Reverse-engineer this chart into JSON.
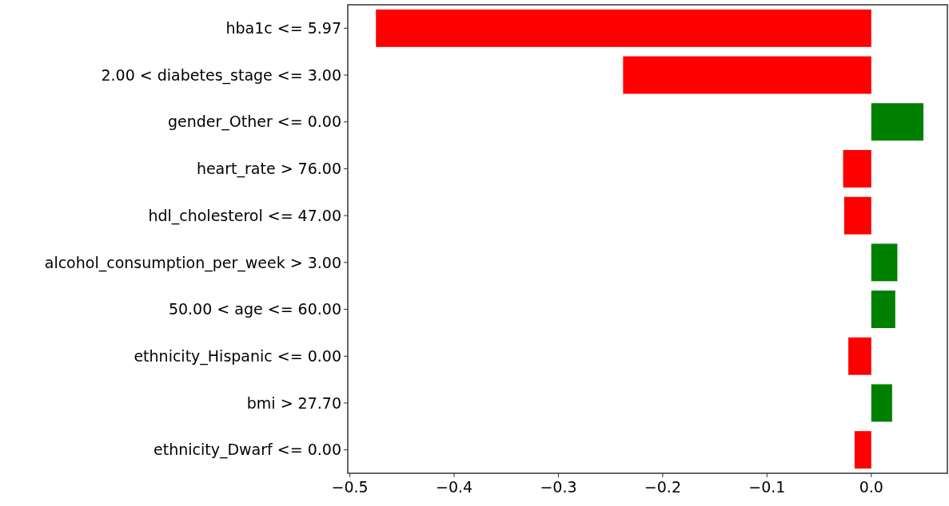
{
  "chart_data": {
    "type": "bar",
    "orientation": "horizontal",
    "categories": [
      "hba1c <= 5.97",
      "2.00 < diabetes_stage <= 3.00",
      "gender_Other <= 0.00",
      "heart_rate > 76.00",
      "hdl_cholesterol <= 47.00",
      "alcohol_consumption_per_week > 3.00",
      "50.00 < age <= 60.00",
      "ethnicity_Hispanic <= 0.00",
      "bmi > 27.70",
      "ethnicity_Dwarf <= 0.00"
    ],
    "values": [
      -0.475,
      -0.238,
      0.05,
      -0.027,
      -0.026,
      0.025,
      0.023,
      -0.022,
      0.02,
      -0.016
    ],
    "colors": [
      "#ff0000",
      "#ff0000",
      "#008000",
      "#ff0000",
      "#ff0000",
      "#008000",
      "#008000",
      "#ff0000",
      "#008000",
      "#ff0000"
    ],
    "xlim": [
      -0.502,
      0.073
    ],
    "xticks": [
      {
        "value": -0.5,
        "label": "−0.5"
      },
      {
        "value": -0.4,
        "label": "−0.4"
      },
      {
        "value": -0.3,
        "label": "−0.3"
      },
      {
        "value": -0.2,
        "label": "−0.2"
      },
      {
        "value": -0.1,
        "label": "−0.1"
      },
      {
        "value": 0,
        "label": "0.0"
      }
    ]
  }
}
